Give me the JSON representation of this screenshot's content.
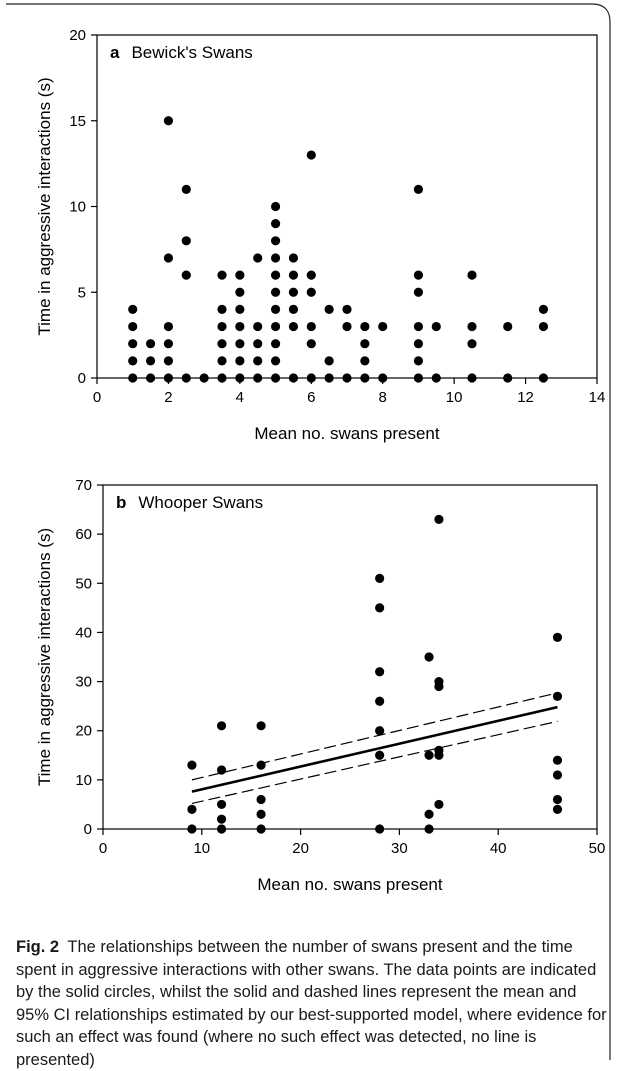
{
  "caption": {
    "label": "Fig. 2",
    "text": "The relationships between the number of swans present and the time spent in aggressive interactions with other swans. The data points are indicated by the solid circles, whilst the solid and dashed lines represent the mean and 95% CI relationships estimated by our best-supported model, where evidence for such an effect was found (where no such effect was detected, no line is presented)"
  },
  "chart_data": [
    {
      "type": "scatter",
      "panel_letter": "a",
      "title": "Bewick's Swans",
      "xlabel": "Mean no. swans present",
      "ylabel": "Time in aggressive interactions (s)",
      "xlim": [
        0,
        14
      ],
      "ylim": [
        0,
        20
      ],
      "xticks": [
        0,
        2,
        4,
        6,
        8,
        10,
        12,
        14
      ],
      "yticks": [
        0,
        5,
        10,
        15,
        20
      ],
      "points": [
        [
          1,
          0
        ],
        [
          1,
          1
        ],
        [
          1,
          2
        ],
        [
          1,
          3
        ],
        [
          1,
          4
        ],
        [
          1.5,
          0
        ],
        [
          1.5,
          1
        ],
        [
          1.5,
          2
        ],
        [
          2,
          0
        ],
        [
          2,
          1
        ],
        [
          2,
          2
        ],
        [
          2,
          3
        ],
        [
          2,
          7
        ],
        [
          2,
          15
        ],
        [
          2.5,
          0
        ],
        [
          2.5,
          6
        ],
        [
          2.5,
          8
        ],
        [
          2.5,
          11
        ],
        [
          3,
          0
        ],
        [
          3.5,
          0
        ],
        [
          3.5,
          1
        ],
        [
          3.5,
          2
        ],
        [
          3.5,
          3
        ],
        [
          3.5,
          4
        ],
        [
          3.5,
          6
        ],
        [
          4,
          0
        ],
        [
          4,
          1
        ],
        [
          4,
          2
        ],
        [
          4,
          3
        ],
        [
          4,
          4
        ],
        [
          4,
          5
        ],
        [
          4,
          6
        ],
        [
          4.5,
          0
        ],
        [
          4.5,
          1
        ],
        [
          4.5,
          2
        ],
        [
          4.5,
          3
        ],
        [
          4.5,
          7
        ],
        [
          5,
          0
        ],
        [
          5,
          1
        ],
        [
          5,
          2
        ],
        [
          5,
          3
        ],
        [
          5,
          4
        ],
        [
          5,
          5
        ],
        [
          5,
          6
        ],
        [
          5,
          7
        ],
        [
          5,
          8
        ],
        [
          5,
          9
        ],
        [
          5,
          10
        ],
        [
          5.5,
          0
        ],
        [
          5.5,
          3
        ],
        [
          5.5,
          4
        ],
        [
          5.5,
          5
        ],
        [
          5.5,
          6
        ],
        [
          5.5,
          7
        ],
        [
          6,
          0
        ],
        [
          6,
          2
        ],
        [
          6,
          3
        ],
        [
          6,
          5
        ],
        [
          6,
          6
        ],
        [
          6,
          13
        ],
        [
          6.5,
          0
        ],
        [
          6.5,
          1
        ],
        [
          6.5,
          4
        ],
        [
          7,
          0
        ],
        [
          7,
          3
        ],
        [
          7,
          4
        ],
        [
          7.5,
          0
        ],
        [
          7.5,
          1
        ],
        [
          7.5,
          2
        ],
        [
          7.5,
          3
        ],
        [
          8,
          0
        ],
        [
          8,
          3
        ],
        [
          9,
          0
        ],
        [
          9,
          1
        ],
        [
          9,
          2
        ],
        [
          9,
          3
        ],
        [
          9,
          5
        ],
        [
          9,
          6
        ],
        [
          9,
          11
        ],
        [
          9.5,
          0
        ],
        [
          9.5,
          3
        ],
        [
          10.5,
          0
        ],
        [
          10.5,
          2
        ],
        [
          10.5,
          3
        ],
        [
          10.5,
          6
        ],
        [
          11.5,
          0
        ],
        [
          11.5,
          3
        ],
        [
          12.5,
          0
        ],
        [
          12.5,
          3
        ],
        [
          12.5,
          4
        ]
      ]
    },
    {
      "type": "scatter",
      "panel_letter": "b",
      "title": "Whooper Swans",
      "xlabel": "Mean no. swans present",
      "ylabel": "Time in aggressive interactions (s)",
      "xlim": [
        0,
        50
      ],
      "ylim": [
        0,
        70
      ],
      "xticks": [
        0,
        10,
        20,
        30,
        40,
        50
      ],
      "yticks": [
        0,
        10,
        20,
        30,
        40,
        50,
        60,
        70
      ],
      "points": [
        [
          9,
          0
        ],
        [
          9,
          4
        ],
        [
          9,
          13
        ],
        [
          12,
          0
        ],
        [
          12,
          2
        ],
        [
          12,
          5
        ],
        [
          12,
          12
        ],
        [
          12,
          21
        ],
        [
          16,
          0
        ],
        [
          16,
          3
        ],
        [
          16,
          6
        ],
        [
          16,
          13
        ],
        [
          16,
          21
        ],
        [
          28,
          0
        ],
        [
          28,
          15
        ],
        [
          28,
          20
        ],
        [
          28,
          26
        ],
        [
          28,
          32
        ],
        [
          28,
          45
        ],
        [
          28,
          51
        ],
        [
          33,
          0
        ],
        [
          33,
          3
        ],
        [
          33,
          15
        ],
        [
          33,
          35
        ],
        [
          34,
          5
        ],
        [
          34,
          15
        ],
        [
          34,
          16
        ],
        [
          34,
          29
        ],
        [
          34,
          30
        ],
        [
          34,
          63
        ],
        [
          46,
          4
        ],
        [
          46,
          6
        ],
        [
          46,
          11
        ],
        [
          46,
          14
        ],
        [
          46,
          27
        ],
        [
          46,
          39
        ]
      ],
      "fit": {
        "x": [
          9,
          46
        ],
        "mean": [
          7.6,
          24.8
        ],
        "ci_lower": [
          5.2,
          21.9
        ],
        "ci_upper": [
          10.0,
          27.7
        ]
      }
    }
  ]
}
